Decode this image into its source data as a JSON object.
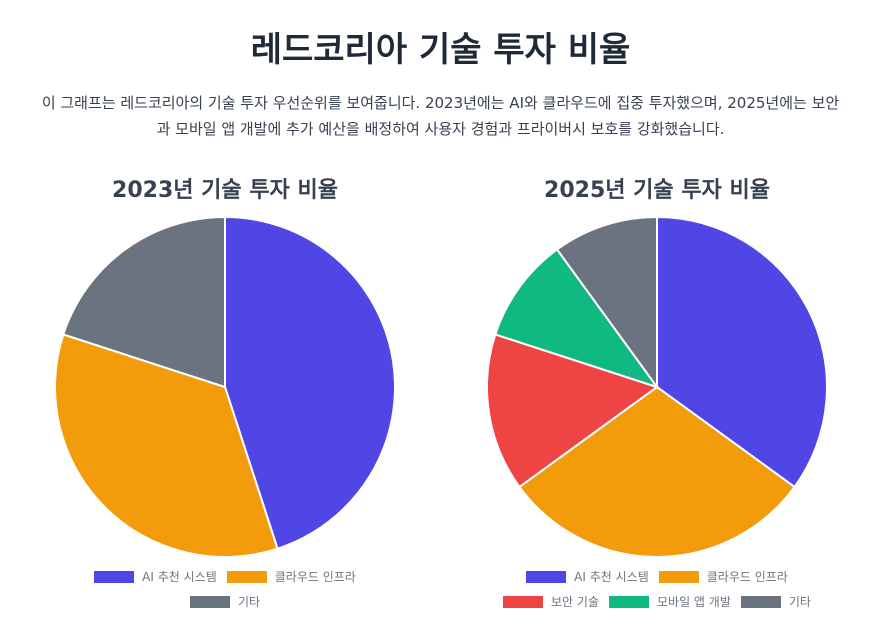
{
  "title": "레드코리아 기술 투자 비율",
  "description": "이 그래프는 레드코리아의 기술 투자 우선순위를 보여줍니다. 2023년에는 AI와 클라우드에 집중 투자했으며, 2025년에는 보안과 모바일 앱 개발에 추가 예산을 배정하여 사용자 경험과 프라이버시 보호를 강화했습니다.",
  "chart_data": [
    {
      "type": "pie",
      "title": "2023년 기술 투자 비율",
      "legend": "bottom",
      "categories": [
        "AI 추천 시스템",
        "클라우드 인프라",
        "기타"
      ],
      "values": [
        45,
        35,
        20
      ],
      "colors": [
        "#4f46e5",
        "#f39c0b",
        "#6b7280"
      ]
    },
    {
      "type": "pie",
      "title": "2025년 기술 투자 비율",
      "legend": "bottom",
      "categories": [
        "AI 추천 시스템",
        "클라우드 인프라",
        "보안 기술",
        "모바일 앱 개발",
        "기타"
      ],
      "values": [
        35,
        30,
        15,
        10,
        10
      ],
      "colors": [
        "#4f46e5",
        "#f39c0b",
        "#ef4444",
        "#10b981",
        "#6b7280"
      ]
    }
  ]
}
